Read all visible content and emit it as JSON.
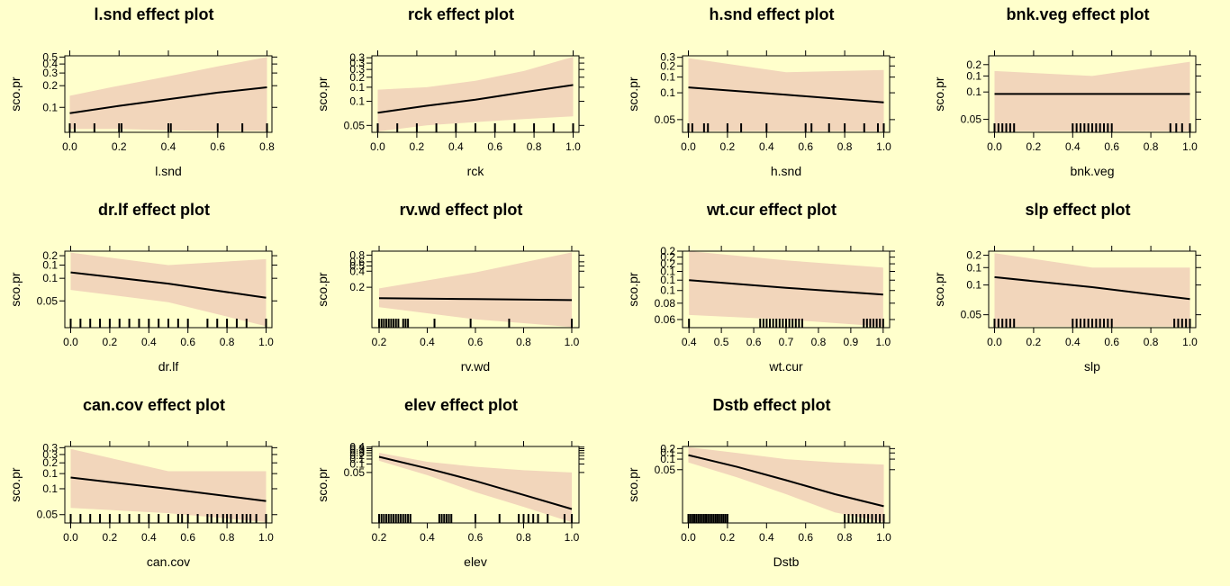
{
  "chart_data": [
    {
      "type": "line",
      "title": "l.snd effect plot",
      "xlabel": "l.snd",
      "ylabel": "sco.pr",
      "xlim": [
        -0.02,
        0.82
      ],
      "ylim": [
        0.045,
        0.52
      ],
      "ylog": true,
      "xticks": [
        0.0,
        0.2,
        0.4,
        0.6,
        0.8
      ],
      "yticks": [
        0.1,
        0.2,
        0.3,
        0.4,
        0.5
      ],
      "fit_x": [
        0.0,
        0.2,
        0.4,
        0.6,
        0.8
      ],
      "fit_y": [
        0.083,
        0.105,
        0.13,
        0.16,
        0.19
      ],
      "lower": [
        0.05,
        0.05,
        0.048,
        0.047,
        0.047
      ],
      "upper": [
        0.145,
        0.2,
        0.27,
        0.37,
        0.5
      ],
      "rug": [
        0.0,
        0.02,
        0.1,
        0.2,
        0.21,
        0.4,
        0.41,
        0.6,
        0.7,
        0.8
      ]
    },
    {
      "type": "line",
      "title": "rck effect plot",
      "xlabel": "rck",
      "ylabel": "sco.pr",
      "xlim": [
        -0.03,
        1.03
      ],
      "ylim": [
        0.041,
        0.37
      ],
      "ylog": true,
      "xticks": [
        0.0,
        0.2,
        0.4,
        0.6,
        0.8,
        1.0
      ],
      "yticks": [
        0.05,
        0.1,
        0.15,
        0.2,
        0.25,
        0.3,
        0.35
      ],
      "fit_x": [
        0.0,
        0.25,
        0.5,
        0.75,
        1.0
      ],
      "fit_y": [
        0.072,
        0.088,
        0.105,
        0.13,
        0.16
      ],
      "lower": [
        0.042,
        0.05,
        0.055,
        0.06,
        0.065
      ],
      "upper": [
        0.14,
        0.15,
        0.18,
        0.24,
        0.36
      ],
      "rug": [
        0.0,
        0.1,
        0.2,
        0.3,
        0.4,
        0.5,
        0.6,
        0.7,
        0.8,
        0.9,
        1.0
      ]
    },
    {
      "type": "line",
      "title": "h.snd effect plot",
      "xlabel": "h.snd",
      "ylabel": "sco.pr",
      "xlim": [
        -0.03,
        1.03
      ],
      "ylim": [
        0.036,
        0.26
      ],
      "ylog": true,
      "xticks": [
        0.0,
        0.2,
        0.4,
        0.6,
        0.8,
        1.0
      ],
      "yticks": [
        0.05,
        0.1,
        0.15,
        0.2,
        0.25
      ],
      "fit_x": [
        0.0,
        0.5,
        1.0
      ],
      "fit_y": [
        0.115,
        0.095,
        0.078
      ],
      "lower": [
        0.037,
        0.037,
        0.037
      ],
      "upper": [
        0.245,
        0.17,
        0.18
      ],
      "rug": [
        0.0,
        0.02,
        0.08,
        0.1,
        0.2,
        0.27,
        0.4,
        0.6,
        0.63,
        0.72,
        0.8,
        0.9,
        0.97,
        1.0
      ]
    },
    {
      "type": "line",
      "title": "bnk.veg effect plot",
      "xlabel": "bnk.veg",
      "ylabel": "sco.pr",
      "xlim": [
        -0.03,
        1.03
      ],
      "ylim": [
        0.036,
        0.25
      ],
      "ylog": true,
      "xticks": [
        0.0,
        0.2,
        0.4,
        0.6,
        0.8,
        1.0
      ],
      "yticks": [
        0.05,
        0.1,
        0.15,
        0.2
      ],
      "fit_x": [
        0.0,
        0.5,
        1.0
      ],
      "fit_y": [
        0.095,
        0.095,
        0.095
      ],
      "lower": [
        0.037,
        0.037,
        0.037
      ],
      "upper": [
        0.17,
        0.15,
        0.215
      ],
      "rug": [
        0.0,
        0.02,
        0.04,
        0.06,
        0.08,
        0.1,
        0.4,
        0.42,
        0.44,
        0.46,
        0.48,
        0.5,
        0.52,
        0.54,
        0.56,
        0.58,
        0.6,
        0.9,
        0.93,
        0.96,
        1.0
      ]
    },
    {
      "type": "line",
      "title": "dr.lf effect plot",
      "xlabel": "dr.lf",
      "ylabel": "sco.pr",
      "xlim": [
        -0.03,
        1.03
      ],
      "ylim": [
        0.022,
        0.23
      ],
      "ylog": true,
      "xticks": [
        0.0,
        0.2,
        0.4,
        0.6,
        0.8,
        1.0
      ],
      "yticks": [
        0.05,
        0.1,
        0.15,
        0.2
      ],
      "fit_x": [
        0.0,
        0.5,
        1.0
      ],
      "fit_y": [
        0.12,
        0.085,
        0.055
      ],
      "lower": [
        0.07,
        0.048,
        0.023
      ],
      "upper": [
        0.22,
        0.15,
        0.18
      ],
      "rug": [
        0.0,
        0.05,
        0.1,
        0.15,
        0.2,
        0.25,
        0.3,
        0.35,
        0.4,
        0.45,
        0.5,
        0.55,
        0.6,
        0.7,
        0.75,
        0.8,
        0.85,
        0.9,
        1.0
      ]
    },
    {
      "type": "line",
      "title": "rv.wd effect plot",
      "xlabel": "rv.wd",
      "ylabel": "sco.pr",
      "xlim": [
        0.17,
        1.03
      ],
      "ylim": [
        0.035,
        0.95
      ],
      "ylog": true,
      "xticks": [
        0.2,
        0.4,
        0.6,
        0.8,
        1.0
      ],
      "yticks": [
        0.2,
        0.4,
        0.5,
        0.6,
        0.8
      ],
      "fit_x": [
        0.2,
        0.6,
        1.0
      ],
      "fit_y": [
        0.125,
        0.12,
        0.115
      ],
      "lower": [
        0.085,
        0.05,
        0.036
      ],
      "upper": [
        0.19,
        0.38,
        0.9
      ],
      "rug": [
        0.2,
        0.21,
        0.22,
        0.23,
        0.24,
        0.25,
        0.26,
        0.27,
        0.28,
        0.3,
        0.31,
        0.32,
        0.43,
        0.58,
        0.74,
        1.0
      ]
    },
    {
      "type": "line",
      "title": "wt.cur effect plot",
      "xlabel": "wt.cur",
      "ylabel": "sco.pr",
      "xlim": [
        0.38,
        1.02
      ],
      "ylim": [
        0.052,
        0.2
      ],
      "ylog": true,
      "xticks": [
        0.4,
        0.5,
        0.6,
        0.7,
        0.8,
        0.9,
        1.0
      ],
      "yticks": [
        0.06,
        0.08,
        0.1,
        0.12,
        0.14,
        0.16,
        0.18,
        0.2
      ],
      "fit_x": [
        0.4,
        0.7,
        1.0
      ],
      "fit_y": [
        0.12,
        0.105,
        0.093
      ],
      "lower": [
        0.065,
        0.06,
        0.053
      ],
      "upper": [
        0.2,
        0.17,
        0.15
      ],
      "rug": [
        0.4,
        0.62,
        0.63,
        0.64,
        0.65,
        0.66,
        0.67,
        0.68,
        0.69,
        0.7,
        0.71,
        0.72,
        0.73,
        0.74,
        0.75,
        0.94,
        0.95,
        0.96,
        0.97,
        0.98,
        0.99,
        1.0
      ]
    },
    {
      "type": "line",
      "title": "slp effect plot",
      "xlabel": "slp",
      "ylabel": "sco.pr",
      "xlim": [
        -0.03,
        1.03
      ],
      "ylim": [
        0.037,
        0.22
      ],
      "ylog": true,
      "xticks": [
        0.0,
        0.2,
        0.4,
        0.6,
        0.8,
        1.0
      ],
      "yticks": [
        0.05,
        0.1,
        0.15,
        0.2
      ],
      "fit_x": [
        0.0,
        0.5,
        1.0
      ],
      "fit_y": [
        0.12,
        0.095,
        0.072
      ],
      "lower": [
        0.038,
        0.038,
        0.038
      ],
      "upper": [
        0.21,
        0.15,
        0.15
      ],
      "rug": [
        0.0,
        0.02,
        0.04,
        0.06,
        0.08,
        0.1,
        0.4,
        0.42,
        0.44,
        0.46,
        0.48,
        0.5,
        0.52,
        0.54,
        0.56,
        0.58,
        0.6,
        0.92,
        0.94,
        0.96,
        0.98,
        1.0
      ]
    },
    {
      "type": "line",
      "title": "can.cov effect plot",
      "xlabel": "can.cov",
      "ylabel": "sco.pr",
      "xlim": [
        -0.03,
        1.03
      ],
      "ylim": [
        0.04,
        0.31
      ],
      "ylog": true,
      "xticks": [
        0.0,
        0.2,
        0.4,
        0.6,
        0.8,
        1.0
      ],
      "yticks": [
        0.05,
        0.1,
        0.15,
        0.2,
        0.25,
        0.3
      ],
      "fit_x": [
        0.0,
        0.5,
        1.0
      ],
      "fit_y": [
        0.135,
        0.1,
        0.072
      ],
      "lower": [
        0.06,
        0.052,
        0.041
      ],
      "upper": [
        0.29,
        0.16,
        0.16
      ],
      "rug": [
        0.0,
        0.05,
        0.1,
        0.15,
        0.2,
        0.25,
        0.3,
        0.35,
        0.4,
        0.45,
        0.5,
        0.55,
        0.57,
        0.6,
        0.65,
        0.7,
        0.72,
        0.75,
        0.78,
        0.8,
        0.82,
        0.85,
        0.88,
        0.9,
        0.92,
        0.95,
        1.0
      ]
    },
    {
      "type": "line",
      "title": "elev effect plot",
      "xlabel": "elev",
      "ylabel": "sco.pr",
      "xlim": [
        0.17,
        1.03
      ],
      "ylim": [
        0.0008,
        0.42
      ],
      "ylog": true,
      "xticks": [
        0.2,
        0.4,
        0.6,
        0.8,
        1.0
      ],
      "yticks": [
        0.05,
        0.1,
        0.15,
        0.2,
        0.25,
        0.3,
        0.35,
        0.4
      ],
      "fit_x": [
        0.2,
        0.4,
        0.6,
        0.8,
        1.0
      ],
      "fit_y": [
        0.18,
        0.07,
        0.025,
        0.008,
        0.0025
      ],
      "lower": [
        0.13,
        0.04,
        0.01,
        0.003,
        0.00085
      ],
      "upper": [
        0.25,
        0.12,
        0.08,
        0.06,
        0.05
      ],
      "rug": [
        0.2,
        0.21,
        0.22,
        0.23,
        0.24,
        0.25,
        0.26,
        0.27,
        0.28,
        0.29,
        0.3,
        0.31,
        0.32,
        0.33,
        0.45,
        0.46,
        0.47,
        0.48,
        0.49,
        0.5,
        0.6,
        0.7,
        0.78,
        0.8,
        0.82,
        0.84,
        0.86,
        0.9,
        0.97,
        1.0
      ]
    },
    {
      "type": "line",
      "title": "Dstb effect plot",
      "xlabel": "Dstb",
      "ylabel": "sco.pr",
      "xlim": [
        -0.03,
        1.03
      ],
      "ylim": [
        0.0015,
        0.23
      ],
      "ylog": true,
      "xticks": [
        0.0,
        0.2,
        0.4,
        0.6,
        0.8,
        1.0
      ],
      "yticks": [
        0.05,
        0.1,
        0.15,
        0.2
      ],
      "fit_x": [
        0.0,
        0.25,
        0.5,
        0.75,
        1.0
      ],
      "fit_y": [
        0.13,
        0.06,
        0.025,
        0.01,
        0.0045
      ],
      "lower": [
        0.08,
        0.03,
        0.01,
        0.003,
        0.0016
      ],
      "upper": [
        0.22,
        0.15,
        0.1,
        0.08,
        0.07
      ],
      "rug": [
        0.0,
        0.01,
        0.02,
        0.03,
        0.04,
        0.05,
        0.06,
        0.07,
        0.08,
        0.09,
        0.1,
        0.11,
        0.12,
        0.13,
        0.14,
        0.15,
        0.16,
        0.17,
        0.18,
        0.19,
        0.2,
        0.8,
        0.82,
        0.84,
        0.86,
        0.88,
        0.9,
        0.92,
        0.94,
        0.96,
        0.98,
        1.0
      ]
    }
  ],
  "colors": {
    "background": "#ffffcc",
    "band": "#f2d6bb",
    "line": "#000000"
  }
}
